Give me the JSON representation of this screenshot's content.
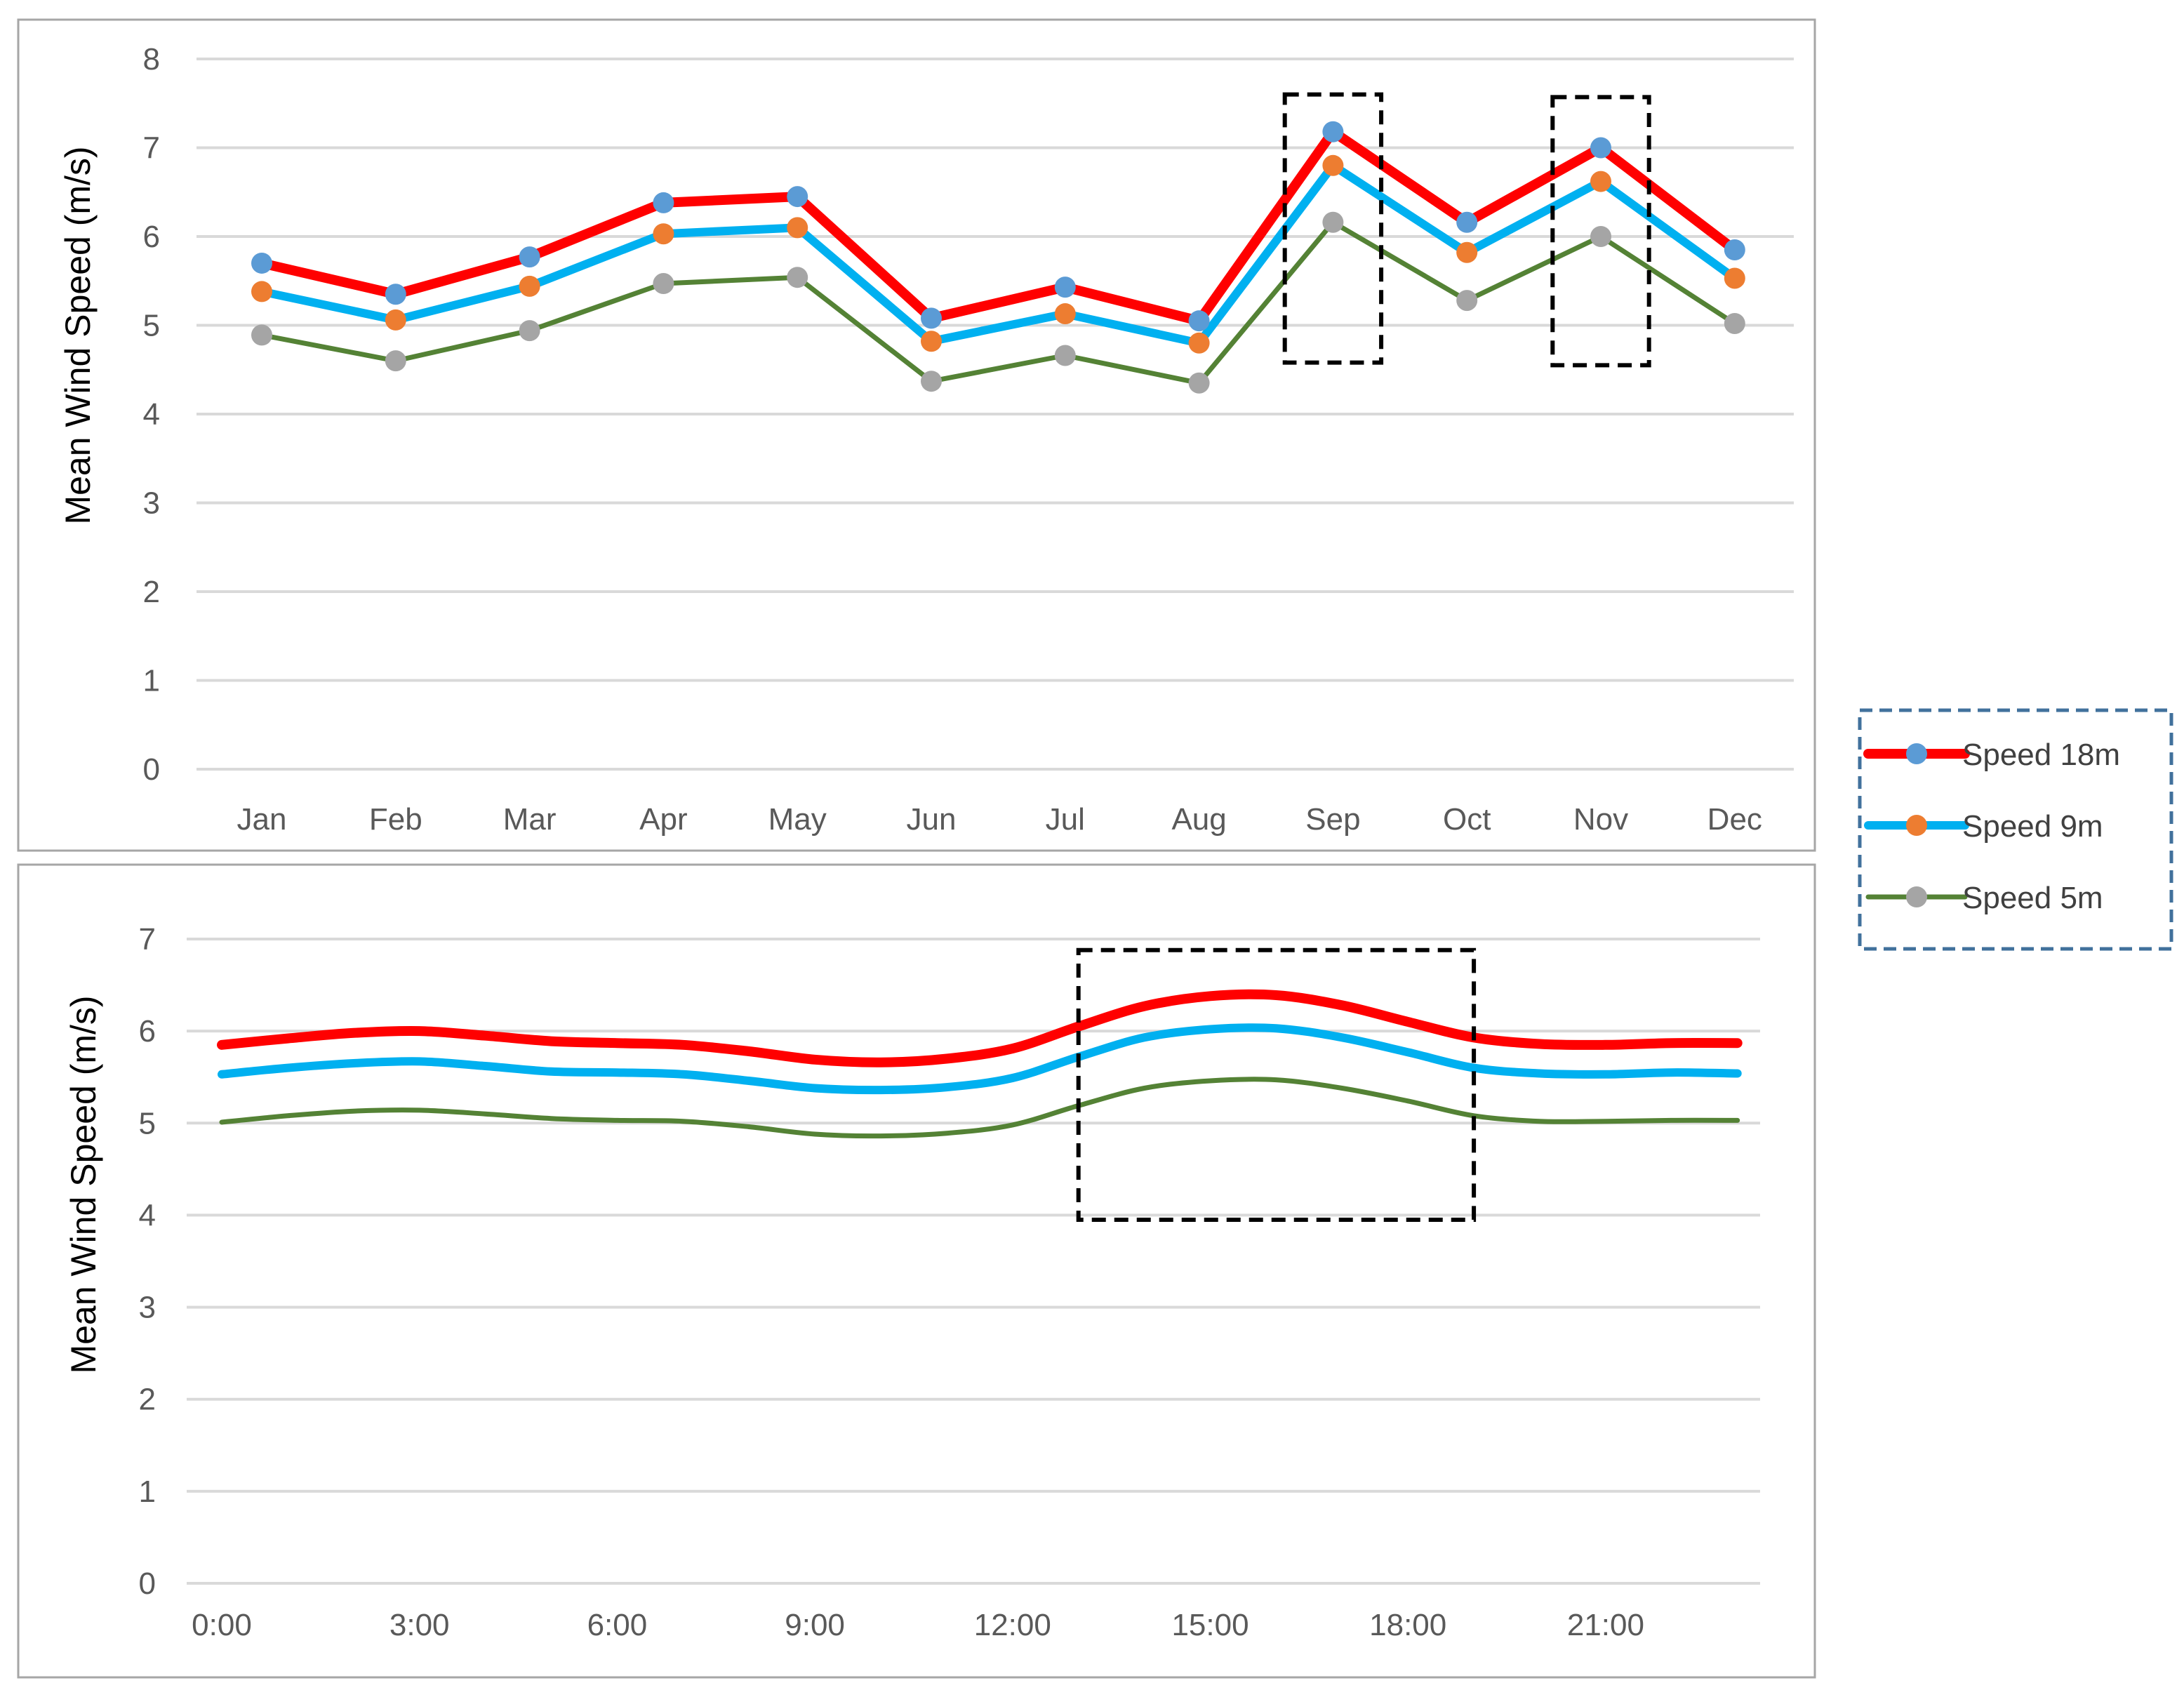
{
  "colors": {
    "speed_18m": "#ff0000",
    "speed_9m": "#00b0f0",
    "speed_5m": "#548235",
    "marker_18m": "#5b9bd5",
    "marker_9m": "#ed7d31",
    "marker_5m": "#a5a5a5",
    "legend_border": "#41719c"
  },
  "legend": {
    "items": [
      {
        "label": "Speed 18m",
        "key": "speed_18m",
        "marker": "marker_18m"
      },
      {
        "label": "Speed 9m",
        "key": "speed_9m",
        "marker": "marker_9m"
      },
      {
        "label": "Speed 5m",
        "key": "speed_5m",
        "marker": "marker_5m"
      }
    ]
  },
  "chart_data": [
    {
      "type": "line",
      "title": "",
      "xlabel": "",
      "ylabel": "Mean Wind Speed (m/s)",
      "ylim": [
        0,
        8
      ],
      "yticks": [
        "0",
        "1",
        "2",
        "3",
        "4",
        "5",
        "6",
        "7",
        "8"
      ],
      "grid": true,
      "markers": true,
      "categories": [
        "Jan",
        "Feb",
        "Mar",
        "Apr",
        "May",
        "Jun",
        "Jul",
        "Aug",
        "Sep",
        "Oct",
        "Nov",
        "Dec"
      ],
      "series": [
        {
          "name": "Speed 18m",
          "values": [
            5.7,
            5.35,
            5.77,
            6.38,
            6.45,
            5.08,
            5.43,
            5.05,
            7.18,
            6.16,
            7.0,
            5.85
          ]
        },
        {
          "name": "Speed 9m",
          "values": [
            5.38,
            5.06,
            5.44,
            6.03,
            6.1,
            4.82,
            5.13,
            4.8,
            6.8,
            5.82,
            6.62,
            5.53
          ]
        },
        {
          "name": "Speed 5m",
          "values": [
            4.89,
            4.6,
            4.94,
            5.47,
            5.54,
            4.37,
            4.66,
            4.35,
            6.16,
            5.28,
            6.0,
            5.02
          ]
        }
      ],
      "highlights": [
        {
          "category": "Sep",
          "y_range": [
            4.58,
            7.6
          ]
        },
        {
          "category": "Nov",
          "y_range": [
            4.55,
            7.57
          ]
        }
      ]
    },
    {
      "type": "line",
      "title": "",
      "xlabel": "",
      "ylabel": "Mean Wind Speed (m/s)",
      "ylim": [
        0,
        7
      ],
      "yticks": [
        "0",
        "1",
        "2",
        "3",
        "4",
        "5",
        "6",
        "7"
      ],
      "grid": true,
      "markers": false,
      "categories": [
        "0:00",
        "1:00",
        "2:00",
        "3:00",
        "4:00",
        "5:00",
        "6:00",
        "7:00",
        "8:00",
        "9:00",
        "10:00",
        "11:00",
        "12:00",
        "13:00",
        "14:00",
        "15:00",
        "16:00",
        "17:00",
        "18:00",
        "19:00",
        "20:00",
        "21:00",
        "22:00",
        "23:00"
      ],
      "tick_labels": [
        "0:00",
        "",
        "",
        "3:00",
        "",
        "",
        "6:00",
        "",
        "",
        "9:00",
        "",
        "",
        "12:00",
        "",
        "",
        "15:00",
        "",
        "",
        "18:00",
        "",
        "",
        "21:00",
        "",
        ""
      ],
      "series": [
        {
          "name": "Speed 18m",
          "values": [
            5.85,
            5.92,
            5.98,
            6.0,
            5.95,
            5.89,
            5.87,
            5.85,
            5.78,
            5.69,
            5.66,
            5.7,
            5.81,
            6.05,
            6.27,
            6.38,
            6.39,
            6.28,
            6.1,
            5.93,
            5.86,
            5.85,
            5.87,
            5.87
          ]
        },
        {
          "name": "Speed 9m",
          "values": [
            5.53,
            5.6,
            5.65,
            5.67,
            5.62,
            5.56,
            5.55,
            5.53,
            5.46,
            5.38,
            5.36,
            5.39,
            5.49,
            5.72,
            5.93,
            6.02,
            6.03,
            5.93,
            5.77,
            5.6,
            5.54,
            5.53,
            5.55,
            5.54
          ]
        },
        {
          "name": "Speed 5m",
          "values": [
            5.01,
            5.08,
            5.13,
            5.14,
            5.1,
            5.05,
            5.03,
            5.02,
            4.96,
            4.88,
            4.86,
            4.89,
            4.98,
            5.19,
            5.38,
            5.46,
            5.47,
            5.38,
            5.24,
            5.08,
            5.02,
            5.02,
            5.03,
            5.03
          ]
        }
      ],
      "highlights": [
        {
          "x_range": [
            "13:00",
            "19:00"
          ],
          "y_range": [
            3.95,
            6.88
          ]
        }
      ]
    }
  ]
}
